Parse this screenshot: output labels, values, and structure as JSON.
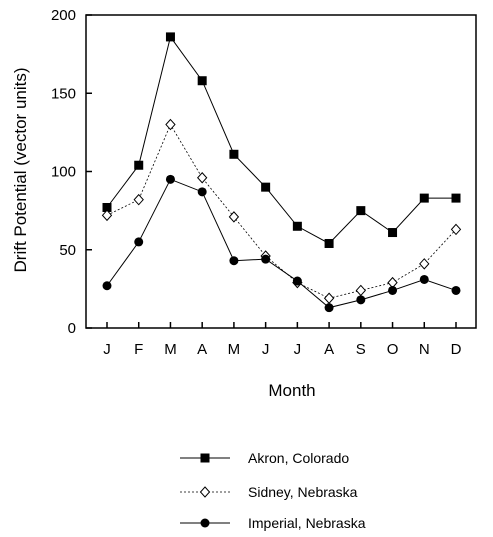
{
  "chart_data": {
    "type": "line",
    "title": "",
    "xlabel": "Month",
    "ylabel": "Drift Potential (vector units)",
    "ylim": [
      0,
      200
    ],
    "yticks": [
      0,
      50,
      100,
      150,
      200
    ],
    "categories": [
      "J",
      "F",
      "M",
      "A",
      "M",
      "J",
      "J",
      "A",
      "S",
      "O",
      "N",
      "D"
    ],
    "grid": false,
    "legend_position": "bottom",
    "series": [
      {
        "name": "Akron, Colorado",
        "values": [
          77,
          104,
          186,
          158,
          111,
          90,
          65,
          54,
          75,
          61,
          83,
          83
        ],
        "marker": "square-filled",
        "line": "solid",
        "color": "#000000"
      },
      {
        "name": "Sidney, Nebraska",
        "values": [
          72,
          82,
          130,
          96,
          71,
          46,
          29,
          19,
          24,
          29,
          41,
          63
        ],
        "marker": "diamond-open",
        "line": "dotted",
        "color": "#000000"
      },
      {
        "name": "Imperial, Nebraska",
        "values": [
          27,
          55,
          95,
          87,
          43,
          44,
          30,
          13,
          18,
          24,
          31,
          24
        ],
        "marker": "circle-filled",
        "line": "solid",
        "color": "#000000"
      }
    ]
  }
}
